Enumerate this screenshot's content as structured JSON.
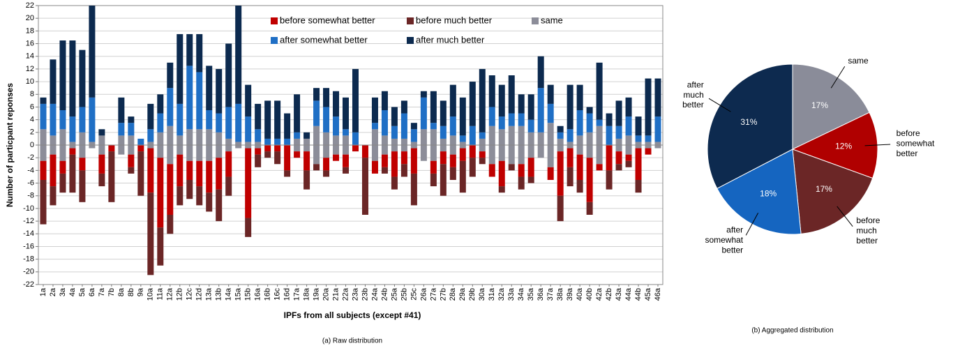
{
  "chart_data": [
    {
      "type": "bar",
      "caption": "(a) Raw distribution",
      "xlabel": "IPFs from all subjects (except #41)",
      "ylabel": "Number of particpant reponses",
      "categories": [
        "1a",
        "2a",
        "3a",
        "4a",
        "5a",
        "6a",
        "7a",
        "7b",
        "8a",
        "8b",
        "9a",
        "10a",
        "11a",
        "12a",
        "12b",
        "12c",
        "12d",
        "13a",
        "13b",
        "14a",
        "15a",
        "15b",
        "16a",
        "16b",
        "16c",
        "16d",
        "17a",
        "18a",
        "19a",
        "20a",
        "21a",
        "22a",
        "23a",
        "23b",
        "24a",
        "24b",
        "25a",
        "25b",
        "25c",
        "26a",
        "27a",
        "27b",
        "28a",
        "29a",
        "29b",
        "30a",
        "31a",
        "32a",
        "33a",
        "34a",
        "35a",
        "36a",
        "37a",
        "38a",
        "39a",
        "40a",
        "40b",
        "42a",
        "42b",
        "43a",
        "44a",
        "44b",
        "45a",
        "46a"
      ],
      "series": [
        {
          "name": "before somewhat better",
          "color": "#c00000",
          "values": [
            -3,
            -5,
            -2,
            -1,
            -2,
            0,
            -3,
            -1,
            0,
            -2,
            -1,
            -7,
            -11,
            -8,
            -5,
            -3,
            -4,
            -5,
            -5,
            -4,
            0,
            -11,
            -1,
            -1,
            -1,
            -4,
            -1,
            -3,
            0,
            -2,
            -1,
            -2,
            -1,
            -2,
            -2,
            -2,
            -4,
            -2,
            -4,
            0,
            -2,
            -2,
            -2,
            -2,
            -2,
            -1,
            -2,
            -4,
            0,
            -2,
            -3,
            0,
            -2,
            -7,
            -3,
            -4,
            -7,
            -1,
            -4,
            -2,
            -1,
            -5,
            -1,
            0
          ]
        },
        {
          "name": "before much better",
          "color": "#6b2626",
          "values": [
            -7,
            -3,
            -3,
            -6,
            -5,
            0,
            -2,
            -8,
            0,
            -1,
            -7,
            -13,
            -6,
            -3,
            -3,
            -3,
            -3,
            -3,
            -5,
            -3,
            0,
            -3,
            -2,
            -1,
            -2,
            -1,
            0,
            -3,
            -1,
            -1,
            0,
            -1,
            0,
            -9,
            0,
            -1,
            -2,
            -2,
            -5,
            0,
            -2,
            -5,
            -2,
            -5,
            -3,
            -1,
            0,
            -1,
            -1,
            -2,
            -1,
            0,
            0,
            -4,
            -3,
            -2,
            -2,
            0,
            -3,
            -1,
            -1,
            -2,
            0,
            0
          ]
        },
        {
          "name": "same",
          "color": "#8c8d99",
          "values": [
            5,
            3,
            5,
            1,
            4,
            1,
            3,
            0,
            3,
            3,
            0,
            1,
            4,
            6,
            3,
            5,
            5,
            5,
            4,
            2,
            1,
            1,
            1,
            0,
            0,
            0,
            2,
            2,
            6,
            4,
            3,
            3,
            0,
            0,
            5,
            3,
            2,
            2,
            1,
            5,
            5,
            2,
            3,
            1,
            0,
            2,
            6,
            5,
            6,
            6,
            4,
            4,
            7,
            2,
            1,
            3,
            4,
            6,
            0,
            2,
            3,
            1,
            1,
            1
          ]
        },
        {
          "name": "after somewhat better",
          "color": "#1f6fc5",
          "values": [
            4,
            5,
            3,
            4,
            4,
            7,
            0,
            0,
            2,
            2,
            1,
            2,
            3,
            6,
            5,
            10,
            9,
            3,
            3,
            5,
            6,
            4,
            2,
            1,
            1,
            1,
            1,
            0,
            4,
            4,
            3,
            1,
            2,
            0,
            1,
            4,
            2,
            4,
            2,
            5,
            1,
            2,
            3,
            1,
            3,
            1,
            3,
            2,
            2,
            2,
            2,
            7,
            3,
            1,
            2,
            4,
            3,
            1,
            3,
            2,
            3,
            1,
            1,
            4
          ]
        },
        {
          "name": "after much better",
          "color": "#0c2a4f",
          "values": [
            1,
            7,
            11,
            12,
            9,
            16,
            1,
            0,
            4,
            1,
            0,
            4,
            3,
            4,
            11,
            5,
            6,
            7,
            7,
            10,
            18,
            5,
            4,
            6,
            6,
            4,
            6,
            1,
            2,
            3,
            4,
            5,
            10,
            0,
            4,
            3,
            3,
            2,
            1,
            1,
            5,
            4,
            5,
            6,
            7,
            10,
            5,
            5,
            6,
            3,
            4,
            5,
            3,
            1,
            7,
            4,
            1,
            9,
            2,
            4,
            3,
            3,
            9,
            6
          ]
        }
      ],
      "ylim": [
        -22,
        22
      ],
      "yticks": [
        -22,
        -20,
        -18,
        -16,
        -14,
        -12,
        -10,
        -8,
        -6,
        -4,
        -2,
        0,
        2,
        4,
        6,
        8,
        10,
        12,
        14,
        16,
        18,
        20,
        22
      ],
      "grid": true
    },
    {
      "type": "pie",
      "caption": "(b) Aggregated distribution",
      "categories": [
        "same",
        "before somewhat better",
        "before much better",
        "after somewhat better",
        "after much better"
      ],
      "values": [
        17,
        12,
        17,
        18,
        31
      ],
      "value_labels": [
        "17%",
        "12%",
        "17%",
        "18%",
        "31%"
      ],
      "colors": [
        "#8a8c99",
        "#b00000",
        "#6b2626",
        "#1565c0",
        "#0d2a4f"
      ]
    }
  ]
}
